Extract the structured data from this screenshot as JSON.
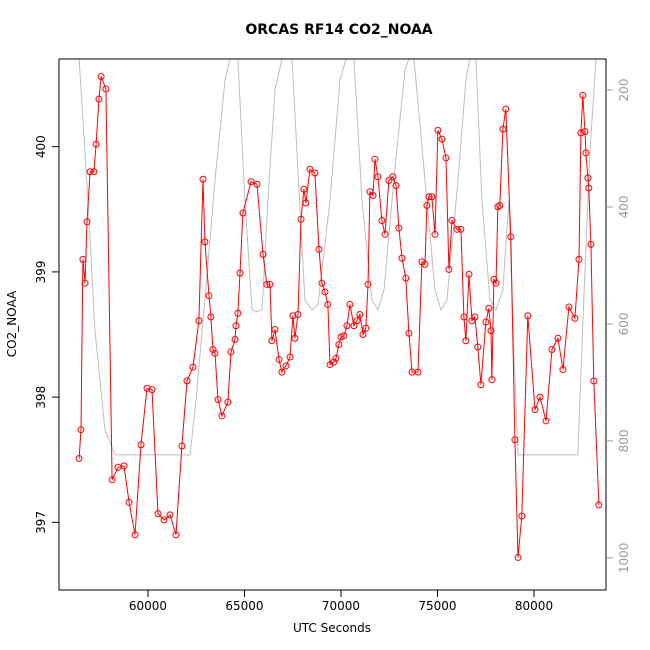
{
  "chart_data": {
    "type": "line",
    "title": "ORCAS RF14 CO2_NOAA",
    "xlabel": "UTC Seconds",
    "ylabel": "CO2_NOAA",
    "xlim": [
      55390,
      83730
    ],
    "ylim": [
      396.46,
      400.7
    ],
    "y2lim": [
      1055,
      147
    ],
    "xticks": [
      60000,
      65000,
      70000,
      75000,
      80000
    ],
    "yticks": [
      397,
      398,
      399,
      400
    ],
    "y2ticks": [
      200,
      400,
      600,
      800,
      1000
    ],
    "series": [
      {
        "color": "#ff0000",
        "markers": true,
        "x": [
          56430,
          56530,
          56630,
          56740,
          56840,
          57000,
          57200,
          57310,
          57460,
          57570,
          57820,
          58140,
          58450,
          58760,
          59020,
          59330,
          59640,
          59950,
          60210,
          60520,
          60830,
          61140,
          61450,
          61760,
          62020,
          62330,
          62640,
          62850,
          62950,
          63160,
          63260,
          63370,
          63470,
          63630,
          63830,
          64140,
          64300,
          64510,
          64560,
          64660,
          64770,
          64920,
          65340,
          65650,
          65960,
          66160,
          66320,
          66420,
          66580,
          66790,
          66940,
          67150,
          67360,
          67510,
          67610,
          67770,
          67930,
          68080,
          68180,
          68390,
          68650,
          68860,
          69010,
          69170,
          69320,
          69430,
          69630,
          69740,
          69890,
          70000,
          70150,
          70310,
          70460,
          70670,
          70830,
          70980,
          71140,
          71290,
          71400,
          71500,
          71660,
          71760,
          71910,
          72120,
          72280,
          72480,
          72690,
          72850,
          73000,
          73160,
          73360,
          73520,
          73680,
          73990,
          74190,
          74350,
          74450,
          74560,
          74710,
          74870,
          75020,
          75230,
          75440,
          75590,
          75750,
          76010,
          76210,
          76370,
          76470,
          76630,
          76780,
          76940,
          77090,
          77250,
          77510,
          77660,
          77770,
          77820,
          77920,
          78030,
          78130,
          78230,
          78390,
          78540,
          78800,
          79010,
          79170,
          79370,
          79680,
          80050,
          80310,
          80620,
          80930,
          81240,
          81500,
          81810,
          82120,
          82330,
          82430,
          82530,
          82640,
          82690,
          82790,
          82840,
          82950,
          83100,
          83360
        ],
        "values": [
          397.51,
          397.74,
          399.1,
          398.91,
          399.4,
          399.8,
          399.8,
          400.02,
          400.38,
          400.56,
          400.46,
          397.34,
          397.44,
          397.45,
          397.16,
          396.9,
          397.62,
          398.07,
          398.06,
          397.07,
          397.02,
          397.06,
          396.9,
          397.61,
          398.13,
          398.24,
          398.61,
          399.74,
          399.24,
          398.81,
          398.64,
          398.38,
          398.35,
          397.98,
          397.85,
          397.96,
          398.36,
          398.46,
          398.57,
          398.67,
          398.99,
          399.47,
          399.72,
          399.7,
          399.14,
          398.9,
          398.9,
          398.45,
          398.54,
          398.3,
          398.2,
          398.25,
          398.32,
          398.65,
          398.47,
          398.66,
          399.42,
          399.66,
          399.55,
          399.82,
          399.79,
          399.18,
          398.91,
          398.84,
          398.74,
          398.26,
          398.28,
          398.31,
          398.42,
          398.48,
          398.49,
          398.57,
          398.74,
          398.57,
          398.61,
          398.66,
          398.5,
          398.55,
          398.9,
          399.64,
          399.61,
          399.9,
          399.76,
          399.41,
          399.3,
          399.73,
          399.76,
          399.69,
          399.35,
          399.11,
          398.95,
          398.51,
          398.2,
          398.2,
          399.08,
          399.06,
          399.53,
          399.6,
          399.6,
          399.3,
          400.13,
          400.06,
          399.91,
          399.02,
          399.41,
          399.34,
          399.34,
          398.64,
          398.45,
          398.98,
          398.61,
          398.64,
          398.4,
          398.1,
          398.6,
          398.71,
          398.53,
          398.14,
          398.94,
          398.91,
          399.52,
          399.53,
          400.14,
          400.3,
          399.28,
          397.66,
          396.72,
          397.05,
          398.65,
          397.9,
          398.0,
          397.81,
          398.38,
          398.47,
          398.22,
          398.72,
          398.63,
          399.1,
          400.11,
          400.41,
          400.12,
          399.95,
          399.75,
          399.67,
          399.22,
          398.13,
          397.14
        ]
      },
      {
        "color": "#bebebe",
        "axis": "y2",
        "markers": false,
        "x": [
          56430,
          56890,
          57250,
          57770,
          58290,
          62180,
          62490,
          62950,
          63470,
          63990,
          64250,
          64660,
          65020,
          65390,
          65650,
          65910,
          66220,
          66580,
          66940,
          67460,
          68130,
          68500,
          68810,
          69430,
          69950,
          70260,
          70670,
          71090,
          71600,
          71910,
          72230,
          72790,
          73310,
          73520,
          73780,
          74350,
          74870,
          75180,
          75490,
          76060,
          76470,
          76680,
          76990,
          77300,
          77720,
          78030,
          78390,
          78700,
          78960,
          79170,
          82270,
          82580,
          82900,
          83210
        ],
        "values": [
          147,
          388,
          610,
          781,
          824,
          824,
          730,
          559,
          354,
          183,
          147,
          147,
          388,
          576,
          579,
          576,
          388,
          200,
          147,
          147,
          559,
          576,
          567,
          388,
          183,
          147,
          147,
          388,
          559,
          576,
          542,
          337,
          166,
          147,
          147,
          354,
          542,
          576,
          559,
          354,
          183,
          147,
          147,
          388,
          559,
          576,
          542,
          388,
          644,
          824,
          824,
          559,
          303,
          147
        ]
      }
    ]
  }
}
